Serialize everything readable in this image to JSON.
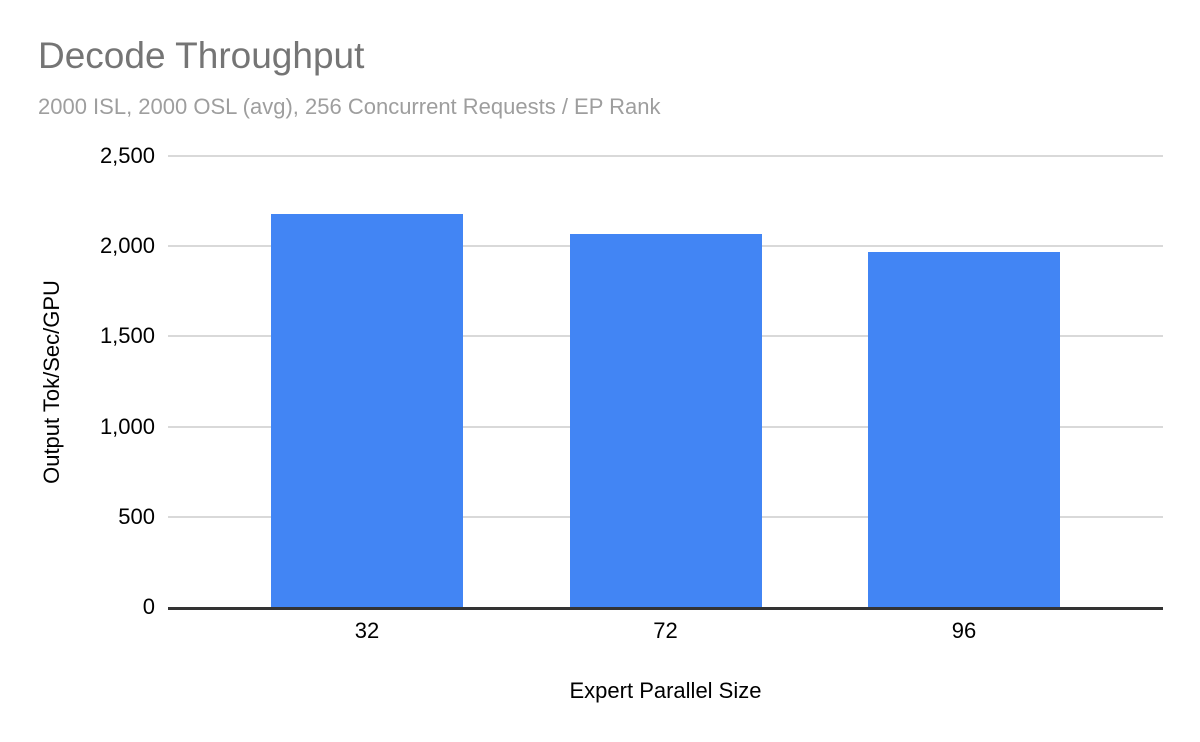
{
  "header": {
    "title": "Decode Throughput",
    "subtitle": "2000 ISL, 2000 OSL (avg), 256 Concurrent Requests / EP Rank"
  },
  "colors": {
    "bar": "#4285f4",
    "title_text": "#757575",
    "subtitle_text": "#9e9e9e",
    "gridline": "#d9d9d9",
    "axis_line": "#333333",
    "tick_text": "#000000",
    "background": "#ffffff"
  },
  "chart_data": {
    "type": "bar",
    "title": "Decode Throughput",
    "subtitle": "2000 ISL, 2000 OSL (avg), 256 Concurrent Requests / EP Rank",
    "categories": [
      "32",
      "72",
      "96"
    ],
    "values": [
      2180,
      2070,
      1970
    ],
    "xlabel": "Expert Parallel Size",
    "ylabel": "Output Tok/Sec/GPU",
    "ylim": [
      0,
      2500
    ],
    "ytick_interval": 500,
    "ytick_labels": [
      "0",
      "500",
      "1,000",
      "1,500",
      "2,000",
      "2,500"
    ],
    "grid": true,
    "legend": "none",
    "bar_color": "#4285f4"
  }
}
